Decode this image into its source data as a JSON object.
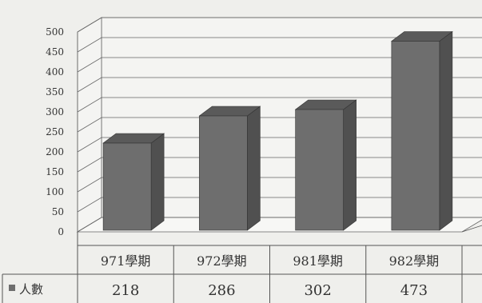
{
  "chart_data": {
    "type": "bar",
    "categories": [
      "971學期",
      "972學期",
      "981學期",
      "982學期"
    ],
    "series": [
      {
        "name": "人數",
        "values": [
          218,
          286,
          302,
          473
        ]
      }
    ],
    "ylim": [
      0,
      500
    ],
    "yticks": [
      0,
      50,
      100,
      150,
      200,
      250,
      300,
      350,
      400,
      450,
      500
    ],
    "grid": true,
    "three_d": true,
    "legend": "data-table",
    "colors": {
      "bar_front": "#6e6e6e",
      "bar_side": "#505050",
      "bar_top": "#5a5a5a"
    }
  }
}
